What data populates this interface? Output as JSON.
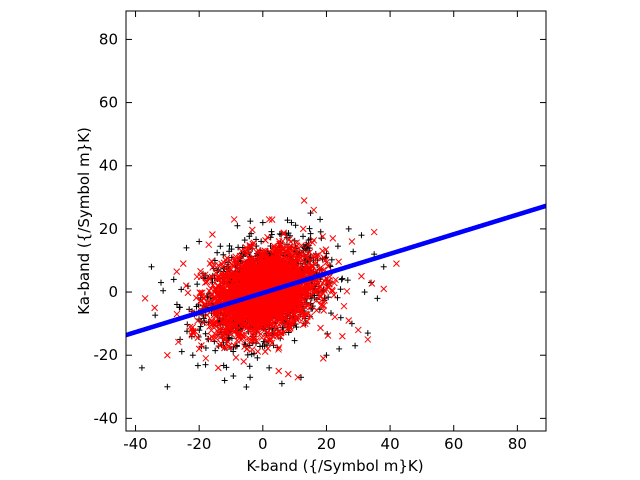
{
  "chart_data": {
    "type": "scatter",
    "title": "",
    "xlabel": "K-band ({/Symbol m}K)",
    "ylabel": "Ka-band ({/Symbol m}K)",
    "xlim": [
      -43,
      89
    ],
    "ylim": [
      -44,
      89
    ],
    "xticks": [
      -40,
      -20,
      0,
      20,
      40,
      60,
      80
    ],
    "yticks": [
      -40,
      -20,
      0,
      20,
      40,
      60,
      80
    ],
    "grid": false,
    "legend": "none",
    "series": [
      {
        "marker": "plus",
        "color": "#000000",
        "cloud": {
          "center": [
            0,
            0
          ],
          "sd": [
            9,
            7.5
          ],
          "corr": 0.3
        },
        "points": [
          [
            -38,
            -24
          ],
          [
            -35,
            8
          ],
          [
            -32,
            3
          ],
          [
            -30,
            -30
          ],
          [
            -28,
            4
          ],
          [
            -26,
            -15
          ],
          [
            -24,
            14
          ],
          [
            -22,
            -20
          ],
          [
            -20,
            16
          ],
          [
            -18,
            -23
          ],
          [
            -12,
            -28
          ],
          [
            -8,
            21
          ],
          [
            -4,
            -27
          ],
          [
            0,
            22
          ],
          [
            2,
            -24
          ],
          [
            6,
            -29
          ],
          [
            9,
            22
          ],
          [
            12,
            -27
          ],
          [
            15,
            25
          ],
          [
            18,
            23
          ],
          [
            20,
            -20
          ],
          [
            24,
            -18
          ],
          [
            27,
            20
          ],
          [
            29,
            -17
          ],
          [
            31,
            18
          ],
          [
            33,
            -13
          ],
          [
            35,
            12
          ],
          [
            36,
            -2
          ],
          [
            38,
            8
          ],
          [
            32,
            0
          ],
          [
            28,
            -10
          ],
          [
            34,
            3
          ]
        ]
      },
      {
        "marker": "x",
        "color": "#ff0000",
        "cloud": {
          "center": [
            0,
            0
          ],
          "sd": [
            8,
            6.5
          ],
          "corr": 0.3
        },
        "points": [
          [
            -37,
            -2
          ],
          [
            -34,
            -5
          ],
          [
            -30,
            -20
          ],
          [
            -27,
            -7
          ],
          [
            -25,
            9
          ],
          [
            -22,
            -13
          ],
          [
            -20,
            -18
          ],
          [
            -17,
            15
          ],
          [
            -14,
            -24
          ],
          [
            -9,
            23
          ],
          [
            -6,
            -22
          ],
          [
            2,
            23
          ],
          [
            5,
            -25
          ],
          [
            8,
            -26
          ],
          [
            11,
            -27
          ],
          [
            13,
            29
          ],
          [
            16,
            26
          ],
          [
            19,
            -21
          ],
          [
            22,
            17
          ],
          [
            25,
            -14
          ],
          [
            28,
            16
          ],
          [
            30,
            -12
          ],
          [
            33,
            -15
          ],
          [
            35,
            19
          ],
          [
            42,
            9
          ],
          [
            38,
            1
          ],
          [
            27,
            -9
          ],
          [
            31,
            5
          ]
        ]
      },
      {
        "marker": "dot",
        "color": "#0000ff",
        "fit": {
          "slope": 0.31,
          "intercept": -0.3,
          "x_range": [
            -43,
            89
          ]
        }
      }
    ]
  }
}
